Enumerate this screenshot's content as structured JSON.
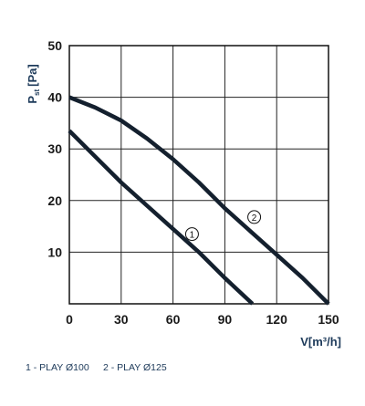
{
  "chart_data": {
    "type": "line",
    "ylabel": {
      "main": "P",
      "sub": "st",
      "unit": "[Pa]"
    },
    "xlabel": "V[m³/h]",
    "xlim": [
      0,
      150
    ],
    "xticks": [
      0,
      30,
      60,
      90,
      120,
      150
    ],
    "ylim": [
      0,
      50
    ],
    "yticks": [
      10,
      20,
      30,
      40,
      50
    ],
    "grid": true,
    "series": [
      {
        "name": "1 - PLAY Ø100",
        "marker": "1",
        "color": "#14202e",
        "x": [
          0,
          15,
          30,
          45,
          60,
          75,
          90,
          106
        ],
        "values": [
          33.5,
          28.5,
          23.5,
          19,
          14.5,
          10,
          5,
          0
        ]
      },
      {
        "name": "2 - PLAY Ø125",
        "marker": "2",
        "color": "#14202e",
        "x": [
          0,
          15,
          30,
          45,
          60,
          75,
          90,
          105,
          120,
          135,
          150
        ],
        "values": [
          40,
          38,
          35.5,
          32,
          28,
          23.5,
          18.5,
          14,
          9.5,
          5,
          0
        ]
      }
    ]
  }
}
